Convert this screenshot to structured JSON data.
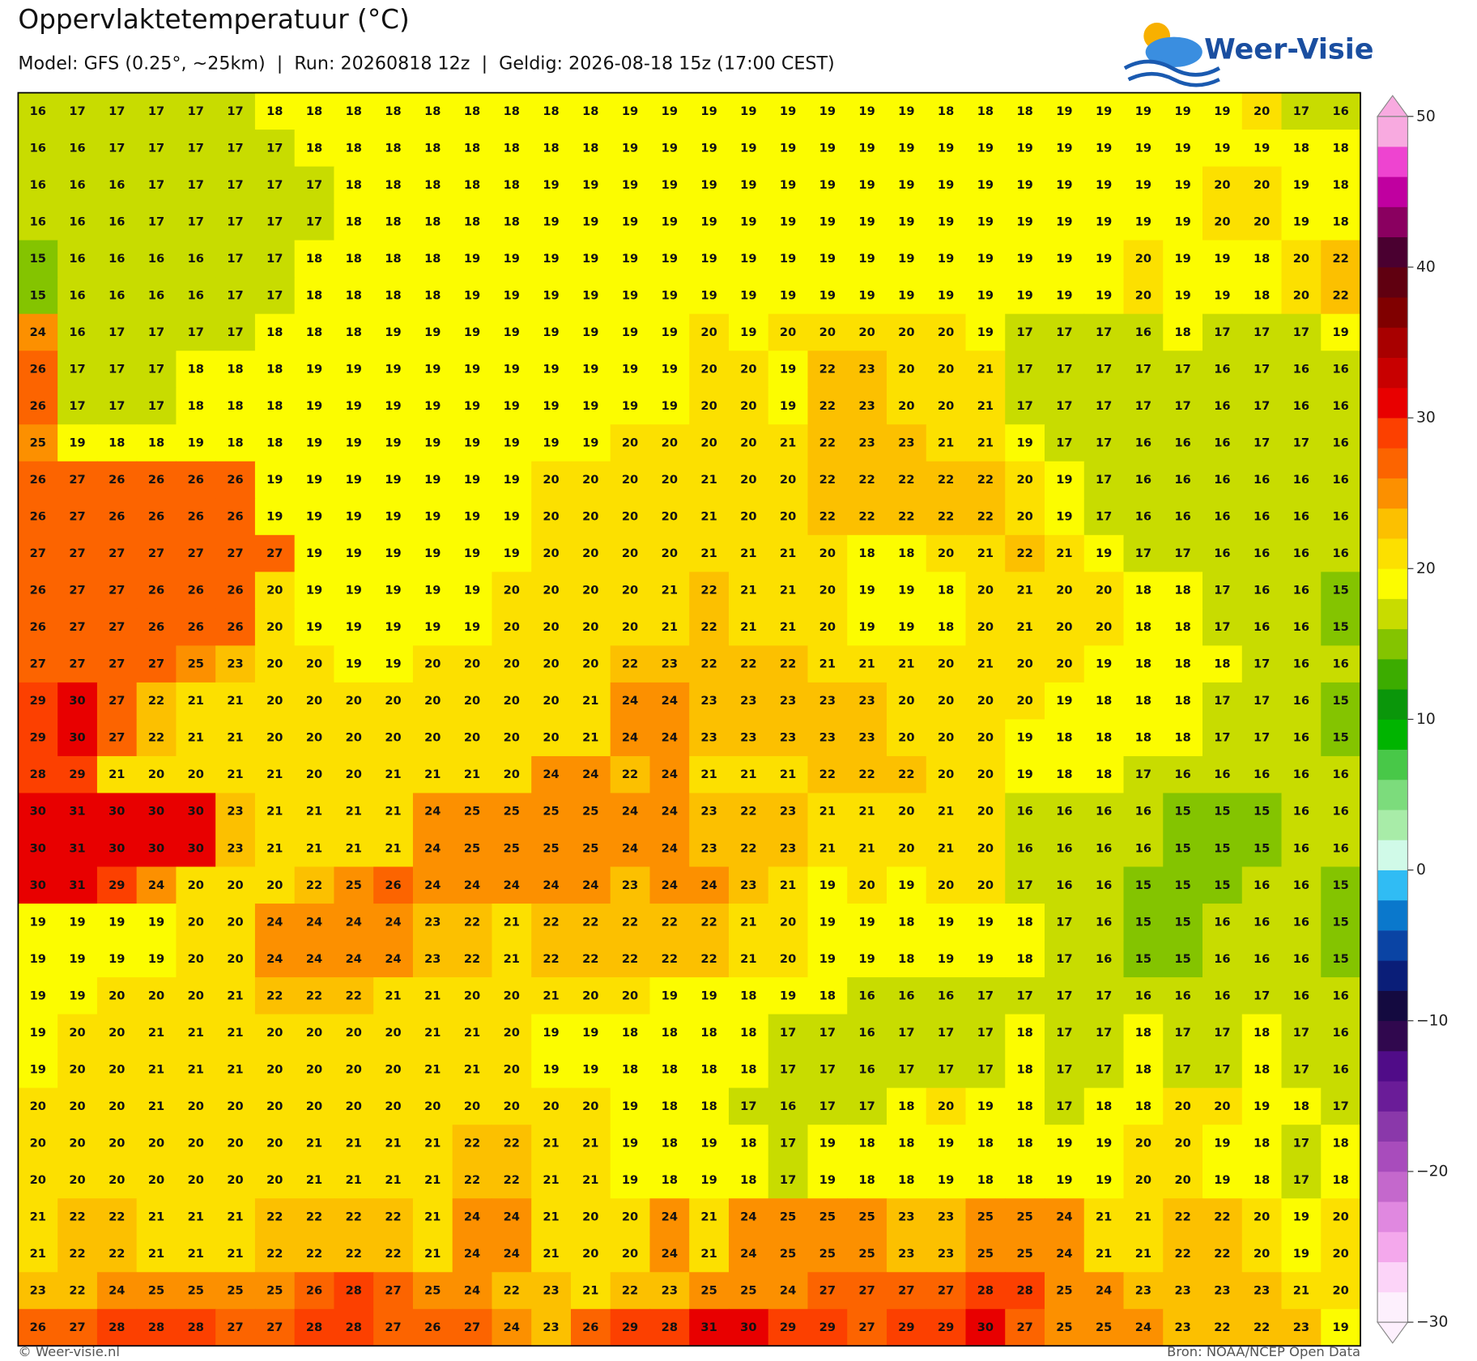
{
  "header": {
    "title": "Oppervlaktetemperatuur (°C)",
    "subtitle": "Model: GFS (0.25°, ~25km)  |  Run: 20260818 12z  |  Geldig: 2026-08-18 15z (17:00 CEST)"
  },
  "logo": {
    "text": "Weer-Visie"
  },
  "grid": {
    "rows": [
      [
        16,
        17,
        17,
        17,
        17,
        17,
        18,
        18,
        18,
        18,
        18,
        18,
        18,
        18,
        18,
        19,
        19,
        19,
        19,
        19,
        19,
        19,
        19,
        18,
        18,
        18,
        19,
        19,
        19,
        19,
        19,
        20,
        17,
        16
      ],
      [
        16,
        16,
        17,
        17,
        17,
        17,
        17,
        18,
        18,
        18,
        18,
        18,
        18,
        18,
        18,
        19,
        19,
        19,
        19,
        19,
        19,
        19,
        19,
        19,
        19,
        19,
        19,
        19,
        19,
        19,
        19,
        19,
        18,
        18
      ],
      [
        16,
        16,
        16,
        17,
        17,
        17,
        17,
        17,
        18,
        18,
        18,
        18,
        18,
        19,
        19,
        19,
        19,
        19,
        19,
        19,
        19,
        19,
        19,
        19,
        19,
        19,
        19,
        19,
        19,
        19,
        20,
        20,
        19,
        18
      ],
      [
        16,
        16,
        16,
        17,
        17,
        17,
        17,
        17,
        18,
        18,
        18,
        18,
        18,
        19,
        19,
        19,
        19,
        19,
        19,
        19,
        19,
        19,
        19,
        19,
        19,
        19,
        19,
        19,
        19,
        19,
        20,
        20,
        19,
        18
      ],
      [
        15,
        16,
        16,
        16,
        16,
        17,
        17,
        18,
        18,
        18,
        18,
        19,
        19,
        19,
        19,
        19,
        19,
        19,
        19,
        19,
        19,
        19,
        19,
        19,
        19,
        19,
        19,
        19,
        20,
        19,
        19,
        18,
        20,
        22
      ],
      [
        15,
        16,
        16,
        16,
        16,
        17,
        17,
        18,
        18,
        18,
        18,
        19,
        19,
        19,
        19,
        19,
        19,
        19,
        19,
        19,
        19,
        19,
        19,
        19,
        19,
        19,
        19,
        19,
        20,
        19,
        19,
        18,
        20,
        22
      ],
      [
        24,
        16,
        17,
        17,
        17,
        17,
        18,
        18,
        18,
        19,
        19,
        19,
        19,
        19,
        19,
        19,
        19,
        20,
        19,
        20,
        20,
        20,
        20,
        20,
        19,
        17,
        17,
        17,
        16,
        18,
        17,
        17,
        17,
        19
      ],
      [
        26,
        17,
        17,
        17,
        18,
        18,
        18,
        19,
        19,
        19,
        19,
        19,
        19,
        19,
        19,
        19,
        19,
        20,
        20,
        19,
        22,
        23,
        20,
        20,
        21,
        17,
        17,
        17,
        17,
        17,
        16,
        17,
        16,
        16
      ],
      [
        26,
        17,
        17,
        17,
        18,
        18,
        18,
        19,
        19,
        19,
        19,
        19,
        19,
        19,
        19,
        19,
        19,
        20,
        20,
        19,
        22,
        23,
        20,
        20,
        21,
        17,
        17,
        17,
        17,
        17,
        16,
        17,
        16,
        16
      ],
      [
        25,
        19,
        18,
        18,
        19,
        18,
        18,
        19,
        19,
        19,
        19,
        19,
        19,
        19,
        19,
        20,
        20,
        20,
        20,
        21,
        22,
        23,
        23,
        21,
        21,
        19,
        17,
        17,
        16,
        16,
        16,
        17,
        17,
        16
      ],
      [
        26,
        27,
        26,
        26,
        26,
        26,
        19,
        19,
        19,
        19,
        19,
        19,
        19,
        20,
        20,
        20,
        20,
        21,
        20,
        20,
        22,
        22,
        22,
        22,
        22,
        20,
        19,
        17,
        16,
        16,
        16,
        16,
        16,
        16
      ],
      [
        26,
        27,
        26,
        26,
        26,
        26,
        19,
        19,
        19,
        19,
        19,
        19,
        19,
        20,
        20,
        20,
        20,
        21,
        20,
        20,
        22,
        22,
        22,
        22,
        22,
        20,
        19,
        17,
        16,
        16,
        16,
        16,
        16,
        16
      ],
      [
        27,
        27,
        27,
        27,
        27,
        27,
        27,
        19,
        19,
        19,
        19,
        19,
        19,
        20,
        20,
        20,
        20,
        21,
        21,
        21,
        20,
        18,
        18,
        20,
        21,
        22,
        21,
        19,
        17,
        17,
        16,
        16,
        16,
        16
      ],
      [
        26,
        27,
        27,
        26,
        26,
        26,
        20,
        19,
        19,
        19,
        19,
        19,
        20,
        20,
        20,
        20,
        21,
        22,
        21,
        21,
        20,
        19,
        19,
        18,
        20,
        21,
        20,
        20,
        18,
        18,
        17,
        16,
        16,
        15
      ],
      [
        26,
        27,
        27,
        26,
        26,
        26,
        20,
        19,
        19,
        19,
        19,
        19,
        20,
        20,
        20,
        20,
        21,
        22,
        21,
        21,
        20,
        19,
        19,
        18,
        20,
        21,
        20,
        20,
        18,
        18,
        17,
        16,
        16,
        15
      ],
      [
        27,
        27,
        27,
        27,
        25,
        23,
        20,
        20,
        19,
        19,
        20,
        20,
        20,
        20,
        20,
        22,
        23,
        22,
        22,
        22,
        21,
        21,
        21,
        20,
        21,
        20,
        20,
        19,
        18,
        18,
        18,
        17,
        16,
        16
      ],
      [
        29,
        30,
        27,
        22,
        21,
        21,
        20,
        20,
        20,
        20,
        20,
        20,
        20,
        20,
        21,
        24,
        24,
        23,
        23,
        23,
        23,
        23,
        20,
        20,
        20,
        20,
        19,
        18,
        18,
        18,
        17,
        17,
        16,
        15
      ],
      [
        29,
        30,
        27,
        22,
        21,
        21,
        20,
        20,
        20,
        20,
        20,
        20,
        20,
        20,
        21,
        24,
        24,
        23,
        23,
        23,
        23,
        23,
        20,
        20,
        20,
        19,
        18,
        18,
        18,
        18,
        17,
        17,
        16,
        15
      ],
      [
        28,
        29,
        21,
        20,
        20,
        21,
        21,
        20,
        20,
        21,
        21,
        21,
        20,
        24,
        24,
        22,
        24,
        21,
        21,
        21,
        22,
        22,
        22,
        20,
        20,
        19,
        18,
        18,
        17,
        16,
        16,
        16,
        16,
        16
      ],
      [
        30,
        31,
        30,
        30,
        30,
        23,
        21,
        21,
        21,
        21,
        24,
        25,
        25,
        25,
        25,
        24,
        24,
        23,
        22,
        23,
        21,
        21,
        20,
        21,
        20,
        16,
        16,
        16,
        16,
        15,
        15,
        15,
        16,
        16
      ],
      [
        30,
        31,
        30,
        30,
        30,
        23,
        21,
        21,
        21,
        21,
        24,
        25,
        25,
        25,
        25,
        24,
        24,
        23,
        22,
        23,
        21,
        21,
        20,
        21,
        20,
        16,
        16,
        16,
        16,
        15,
        15,
        15,
        16,
        16
      ],
      [
        30,
        31,
        29,
        24,
        20,
        20,
        20,
        22,
        25,
        26,
        24,
        24,
        24,
        24,
        24,
        23,
        24,
        24,
        23,
        21,
        19,
        20,
        19,
        20,
        20,
        17,
        16,
        16,
        15,
        15,
        15,
        16,
        16,
        15
      ],
      [
        19,
        19,
        19,
        19,
        20,
        20,
        24,
        24,
        24,
        24,
        23,
        22,
        21,
        22,
        22,
        22,
        22,
        22,
        21,
        20,
        19,
        19,
        18,
        19,
        19,
        18,
        17,
        16,
        15,
        15,
        16,
        16,
        16,
        15
      ],
      [
        19,
        19,
        19,
        19,
        20,
        20,
        24,
        24,
        24,
        24,
        23,
        22,
        21,
        22,
        22,
        22,
        22,
        22,
        21,
        20,
        19,
        19,
        18,
        19,
        19,
        18,
        17,
        16,
        15,
        15,
        16,
        16,
        16,
        15
      ],
      [
        19,
        19,
        20,
        20,
        20,
        21,
        22,
        22,
        22,
        21,
        21,
        20,
        20,
        21,
        20,
        20,
        19,
        19,
        18,
        19,
        18,
        16,
        16,
        16,
        17,
        17,
        17,
        17,
        16,
        16,
        16,
        17,
        16,
        16
      ],
      [
        19,
        20,
        20,
        21,
        21,
        21,
        20,
        20,
        20,
        20,
        21,
        21,
        20,
        19,
        19,
        18,
        18,
        18,
        18,
        17,
        17,
        16,
        17,
        17,
        17,
        18,
        17,
        17,
        18,
        17,
        17,
        18,
        17,
        16
      ],
      [
        19,
        20,
        20,
        21,
        21,
        21,
        20,
        20,
        20,
        20,
        21,
        21,
        20,
        19,
        19,
        18,
        18,
        18,
        18,
        17,
        17,
        16,
        17,
        17,
        17,
        18,
        17,
        17,
        18,
        17,
        17,
        18,
        17,
        16
      ],
      [
        20,
        20,
        20,
        21,
        20,
        20,
        20,
        20,
        20,
        20,
        20,
        20,
        20,
        20,
        20,
        19,
        18,
        18,
        17,
        16,
        17,
        17,
        18,
        20,
        19,
        18,
        17,
        18,
        18,
        20,
        20,
        19,
        18,
        17
      ],
      [
        20,
        20,
        20,
        20,
        20,
        20,
        20,
        21,
        21,
        21,
        21,
        22,
        22,
        21,
        21,
        19,
        18,
        19,
        18,
        17,
        19,
        18,
        18,
        19,
        18,
        18,
        19,
        19,
        20,
        20,
        19,
        18,
        17,
        18
      ],
      [
        20,
        20,
        20,
        20,
        20,
        20,
        20,
        21,
        21,
        21,
        21,
        22,
        22,
        21,
        21,
        19,
        18,
        19,
        18,
        17,
        19,
        18,
        18,
        19,
        18,
        18,
        19,
        19,
        20,
        20,
        19,
        18,
        17,
        18
      ],
      [
        21,
        22,
        22,
        21,
        21,
        21,
        22,
        22,
        22,
        22,
        21,
        24,
        24,
        21,
        20,
        20,
        24,
        21,
        24,
        25,
        25,
        25,
        23,
        23,
        25,
        25,
        24,
        21,
        21,
        22,
        22,
        20,
        19,
        20
      ],
      [
        21,
        22,
        22,
        21,
        21,
        21,
        22,
        22,
        22,
        22,
        21,
        24,
        24,
        21,
        20,
        20,
        24,
        21,
        24,
        25,
        25,
        25,
        23,
        23,
        25,
        25,
        24,
        21,
        21,
        22,
        22,
        20,
        19,
        20
      ],
      [
        23,
        22,
        24,
        25,
        25,
        25,
        25,
        26,
        28,
        27,
        25,
        24,
        22,
        23,
        21,
        22,
        23,
        25,
        25,
        24,
        27,
        27,
        27,
        27,
        28,
        28,
        25,
        24,
        23,
        23,
        23,
        23,
        21,
        20
      ],
      [
        26,
        27,
        28,
        28,
        28,
        27,
        27,
        28,
        28,
        27,
        26,
        27,
        24,
        23,
        26,
        29,
        28,
        31,
        30,
        29,
        29,
        27,
        29,
        29,
        30,
        27,
        25,
        25,
        24,
        23,
        22,
        22,
        23,
        19
      ]
    ]
  },
  "colorbar": {
    "lim": [
      -30,
      50
    ],
    "ticks": [
      {
        "value": -30,
        "label": "−30"
      },
      {
        "value": -20,
        "label": "−20"
      },
      {
        "value": -10,
        "label": "−10"
      },
      0,
      10,
      20,
      30,
      40,
      50
    ],
    "colors": [
      "#fdf0fd",
      "#fcd4f8",
      "#f4a8ec",
      "#e088e0",
      "#c468cc",
      "#a84cbc",
      "#8a38aa",
      "#6a1c98",
      "#500c88",
      "#30084e",
      "#140a40",
      "#0a1e78",
      "#0a44a4",
      "#0a78cc",
      "#30bcf4",
      "#d0fae8",
      "#a8eca8",
      "#7cdc7c",
      "#48c848",
      "#00b400",
      "#0a960a",
      "#3cac00",
      "#84c400",
      "#c8dc00",
      "#fcfc00",
      "#fce000",
      "#fcc000",
      "#fc9000",
      "#fc6400",
      "#fc4000",
      "#e80000",
      "#c80000",
      "#a80000",
      "#800000",
      "#600010",
      "#4a0030",
      "#8a0060",
      "#c000a0",
      "#ee44d0",
      "#f8aae0"
    ]
  },
  "footer": {
    "left": "© Weer-visie.nl",
    "right": "Bron: NOAA/NCEP Open Data"
  }
}
